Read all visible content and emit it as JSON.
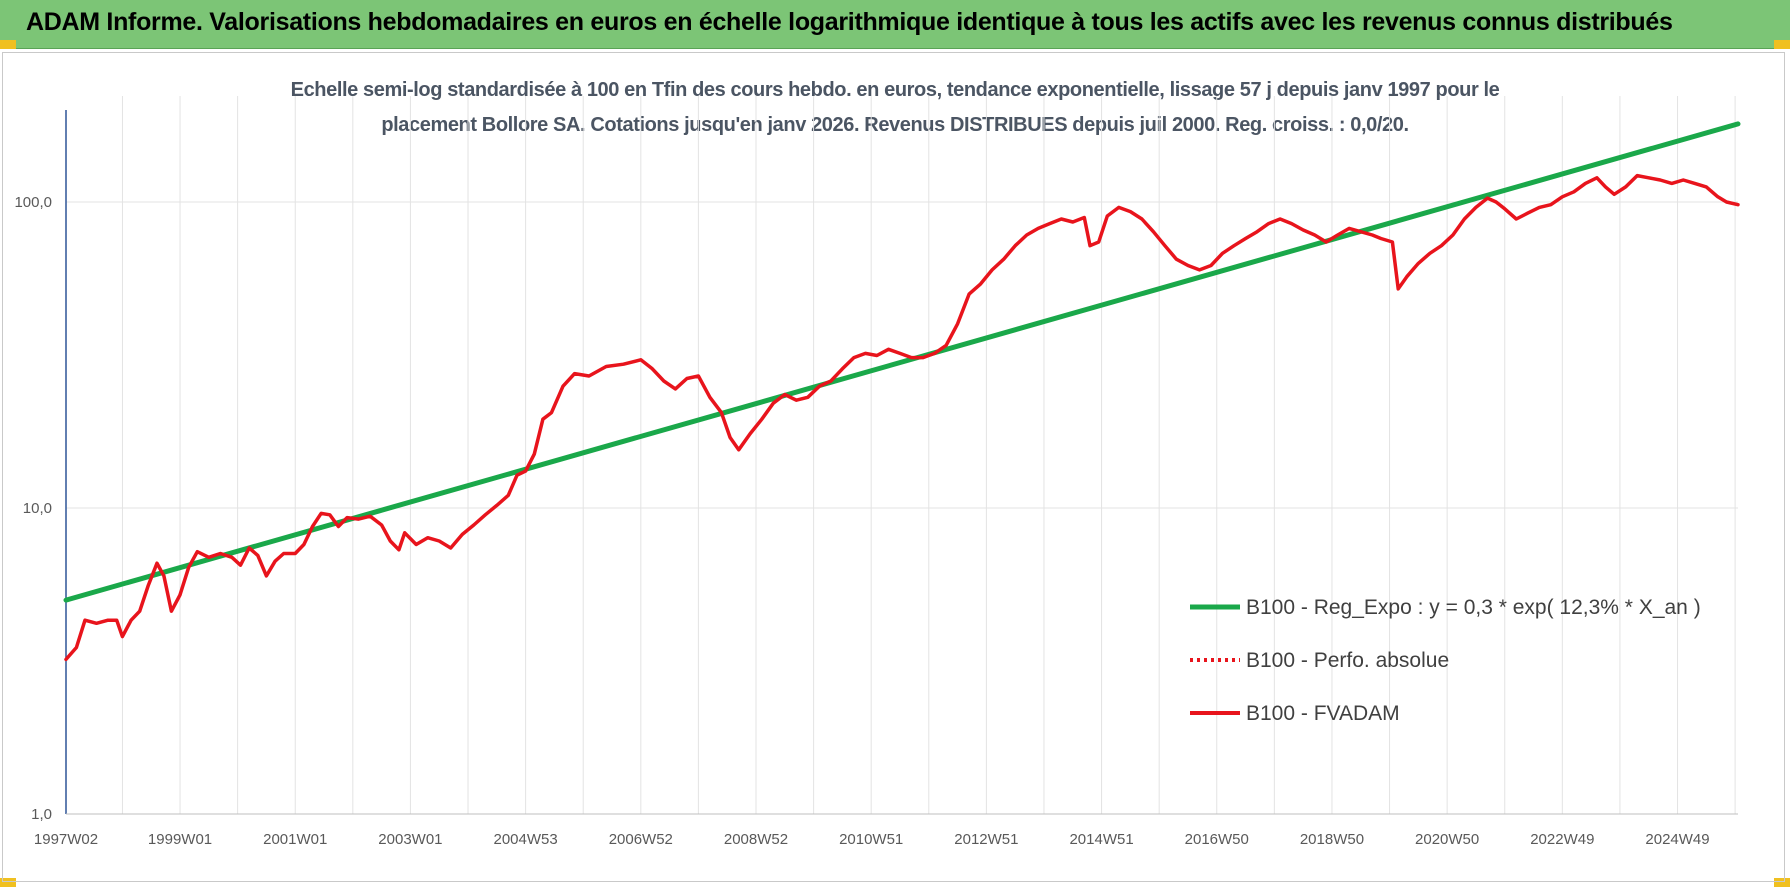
{
  "header": {
    "title": "ADAM Informe. Valorisations hebdomadaires en euros en échelle logarithmique identique à tous les actifs avec les revenus connus distribués"
  },
  "chart_data": {
    "type": "line",
    "subtitle_line1": "Echelle semi-log standardisée à 100 en Tfin des cours hebdo. en euros, tendance exponentielle, lissage 57 j depuis janv 1997 pour le",
    "subtitle_line2": "placement Bollore SA. Cotations jusqu'en janv 2026. Revenus DISTRIBUES depuis juil 2000. Reg. croiss. : 0,0/20.",
    "y_scale": "log",
    "ylim": [
      1,
      200
    ],
    "xlim": [
      1997.02,
      2026.05
    ],
    "grid": true,
    "legend_position": "right-bottom",
    "y_ticks": [
      {
        "value": 1,
        "label": "1,0"
      },
      {
        "value": 10,
        "label": "10,0"
      },
      {
        "value": 100,
        "label": "100,0"
      }
    ],
    "x_ticks": [
      {
        "label": "1997W02",
        "x": 1997.02
      },
      {
        "label": "1999W01",
        "x": 1999.0
      },
      {
        "label": "2001W01",
        "x": 2001.0
      },
      {
        "label": "2003W01",
        "x": 2003.0
      },
      {
        "label": "2004W53",
        "x": 2005.0
      },
      {
        "label": "2006W52",
        "x": 2007.0
      },
      {
        "label": "2008W52",
        "x": 2009.0
      },
      {
        "label": "2010W51",
        "x": 2011.0
      },
      {
        "label": "2012W51",
        "x": 2013.0
      },
      {
        "label": "2014W51",
        "x": 2015.0
      },
      {
        "label": "2016W50",
        "x": 2017.0
      },
      {
        "label": "2018W50",
        "x": 2019.0
      },
      {
        "label": "2020W50",
        "x": 2021.0
      },
      {
        "label": "2022W49",
        "x": 2023.0
      },
      {
        "label": "2024W49",
        "x": 2025.0
      }
    ],
    "series": [
      {
        "name": "B100 - Reg_Expo : y = 0,3 * exp( 12,3% *  X_an )",
        "color": "#1aa84a",
        "style": "solid",
        "points": [
          [
            1997.02,
            5.0
          ],
          [
            2026.05,
            180.0
          ]
        ]
      },
      {
        "name": "B100 - Perfo. absolue",
        "color": "#e8141c",
        "style": "dotted",
        "points": []
      },
      {
        "name": "B100 - FVADAM",
        "color": "#e8141c",
        "style": "solid",
        "points": [
          [
            1997.02,
            3.2
          ],
          [
            1997.2,
            3.5
          ],
          [
            1997.35,
            4.3
          ],
          [
            1997.55,
            4.2
          ],
          [
            1997.75,
            4.3
          ],
          [
            1997.9,
            4.3
          ],
          [
            1998.0,
            3.8
          ],
          [
            1998.15,
            4.3
          ],
          [
            1998.3,
            4.6
          ],
          [
            1998.45,
            5.6
          ],
          [
            1998.6,
            6.6
          ],
          [
            1998.72,
            6.0
          ],
          [
            1998.85,
            4.6
          ],
          [
            1999.0,
            5.2
          ],
          [
            1999.15,
            6.4
          ],
          [
            1999.3,
            7.2
          ],
          [
            1999.5,
            6.9
          ],
          [
            1999.7,
            7.1
          ],
          [
            1999.9,
            6.9
          ],
          [
            2000.05,
            6.5
          ],
          [
            2000.2,
            7.4
          ],
          [
            2000.35,
            7.0
          ],
          [
            2000.5,
            6.0
          ],
          [
            2000.65,
            6.7
          ],
          [
            2000.8,
            7.1
          ],
          [
            2001.0,
            7.1
          ],
          [
            2001.15,
            7.6
          ],
          [
            2001.3,
            8.7
          ],
          [
            2001.45,
            9.6
          ],
          [
            2001.6,
            9.5
          ],
          [
            2001.75,
            8.7
          ],
          [
            2001.9,
            9.3
          ],
          [
            2002.1,
            9.2
          ],
          [
            2002.3,
            9.4
          ],
          [
            2002.5,
            8.8
          ],
          [
            2002.65,
            7.8
          ],
          [
            2002.8,
            7.3
          ],
          [
            2002.9,
            8.3
          ],
          [
            2003.1,
            7.6
          ],
          [
            2003.3,
            8.0
          ],
          [
            2003.5,
            7.8
          ],
          [
            2003.7,
            7.4
          ],
          [
            2003.9,
            8.2
          ],
          [
            2004.1,
            8.8
          ],
          [
            2004.3,
            9.5
          ],
          [
            2004.5,
            10.2
          ],
          [
            2004.7,
            11.0
          ],
          [
            2004.85,
            12.8
          ],
          [
            2005.0,
            13.2
          ],
          [
            2005.15,
            15.0
          ],
          [
            2005.3,
            19.5
          ],
          [
            2005.45,
            20.5
          ],
          [
            2005.65,
            25.0
          ],
          [
            2005.85,
            27.5
          ],
          [
            2006.1,
            27.0
          ],
          [
            2006.4,
            29.0
          ],
          [
            2006.7,
            29.5
          ],
          [
            2007.0,
            30.5
          ],
          [
            2007.2,
            28.5
          ],
          [
            2007.4,
            26.0
          ],
          [
            2007.6,
            24.5
          ],
          [
            2007.8,
            26.5
          ],
          [
            2008.0,
            27.0
          ],
          [
            2008.2,
            23.0
          ],
          [
            2008.4,
            20.5
          ],
          [
            2008.55,
            17.0
          ],
          [
            2008.7,
            15.5
          ],
          [
            2008.9,
            17.5
          ],
          [
            2009.1,
            19.5
          ],
          [
            2009.3,
            22.0
          ],
          [
            2009.5,
            23.5
          ],
          [
            2009.7,
            22.5
          ],
          [
            2009.9,
            23.0
          ],
          [
            2010.1,
            25.0
          ],
          [
            2010.3,
            26.0
          ],
          [
            2010.5,
            28.5
          ],
          [
            2010.7,
            31.0
          ],
          [
            2010.9,
            32.0
          ],
          [
            2011.1,
            31.5
          ],
          [
            2011.3,
            33.0
          ],
          [
            2011.5,
            32.0
          ],
          [
            2011.7,
            31.0
          ],
          [
            2011.9,
            31.0
          ],
          [
            2012.1,
            32.0
          ],
          [
            2012.3,
            34.0
          ],
          [
            2012.5,
            40.0
          ],
          [
            2012.7,
            50.0
          ],
          [
            2012.9,
            54.0
          ],
          [
            2013.1,
            60.0
          ],
          [
            2013.3,
            65.0
          ],
          [
            2013.5,
            72.0
          ],
          [
            2013.7,
            78.0
          ],
          [
            2013.9,
            82.0
          ],
          [
            2014.1,
            85.0
          ],
          [
            2014.3,
            88.0
          ],
          [
            2014.5,
            86.0
          ],
          [
            2014.7,
            89.0
          ],
          [
            2014.8,
            72.0
          ],
          [
            2014.95,
            74.0
          ],
          [
            2015.1,
            90.0
          ],
          [
            2015.3,
            96.0
          ],
          [
            2015.5,
            93.0
          ],
          [
            2015.7,
            88.0
          ],
          [
            2015.9,
            80.0
          ],
          [
            2016.1,
            72.0
          ],
          [
            2016.3,
            65.0
          ],
          [
            2016.5,
            62.0
          ],
          [
            2016.7,
            60.0
          ],
          [
            2016.9,
            62.0
          ],
          [
            2017.1,
            68.0
          ],
          [
            2017.3,
            72.0
          ],
          [
            2017.5,
            76.0
          ],
          [
            2017.7,
            80.0
          ],
          [
            2017.9,
            85.0
          ],
          [
            2018.1,
            88.0
          ],
          [
            2018.3,
            85.0
          ],
          [
            2018.5,
            81.0
          ],
          [
            2018.7,
            78.0
          ],
          [
            2018.9,
            74.0
          ],
          [
            2019.1,
            78.0
          ],
          [
            2019.3,
            82.0
          ],
          [
            2019.5,
            80.0
          ],
          [
            2019.7,
            78.0
          ],
          [
            2019.85,
            76.0
          ],
          [
            2020.05,
            74.0
          ],
          [
            2020.15,
            52.0
          ],
          [
            2020.3,
            57.0
          ],
          [
            2020.5,
            63.0
          ],
          [
            2020.7,
            68.0
          ],
          [
            2020.9,
            72.0
          ],
          [
            2021.1,
            78.0
          ],
          [
            2021.3,
            88.0
          ],
          [
            2021.5,
            96.0
          ],
          [
            2021.7,
            103.0
          ],
          [
            2021.85,
            100.0
          ],
          [
            2022.0,
            95.0
          ],
          [
            2022.2,
            88.0
          ],
          [
            2022.4,
            92.0
          ],
          [
            2022.6,
            96.0
          ],
          [
            2022.8,
            98.0
          ],
          [
            2023.0,
            104.0
          ],
          [
            2023.2,
            108.0
          ],
          [
            2023.4,
            115.0
          ],
          [
            2023.6,
            120.0
          ],
          [
            2023.75,
            112.0
          ],
          [
            2023.9,
            106.0
          ],
          [
            2024.1,
            112.0
          ],
          [
            2024.3,
            122.0
          ],
          [
            2024.5,
            120.0
          ],
          [
            2024.7,
            118.0
          ],
          [
            2024.9,
            115.0
          ],
          [
            2025.1,
            118.0
          ],
          [
            2025.3,
            115.0
          ],
          [
            2025.5,
            112.0
          ],
          [
            2025.7,
            104.0
          ],
          [
            2025.85,
            100.0
          ],
          [
            2026.05,
            98.0
          ]
        ]
      }
    ]
  }
}
